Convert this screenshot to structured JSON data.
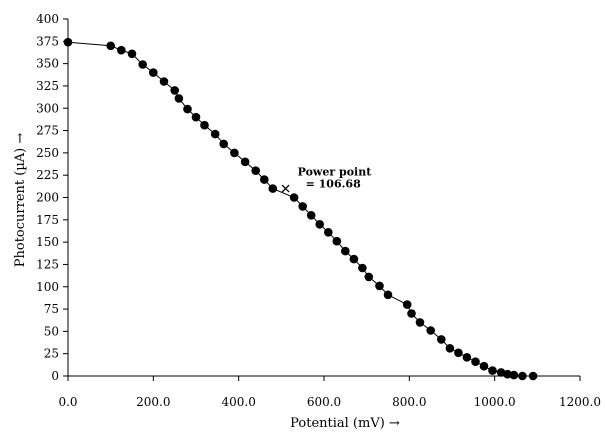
{
  "chart_data": {
    "type": "scatter",
    "title": "",
    "xlabel": "Potential (mV) →",
    "ylabel": "Photocurrent (µA) →",
    "xlim": [
      0,
      1200
    ],
    "ylim": [
      0,
      400
    ],
    "x_ticks": [
      "0.0",
      "200.0",
      "400.0",
      "600.0",
      "800.0",
      "1000.0",
      "1200.0"
    ],
    "y_ticks": [
      "0",
      "25",
      "50",
      "75",
      "100",
      "125",
      "150",
      "175",
      "200",
      "225",
      "250",
      "275",
      "300",
      "325",
      "350",
      "375",
      "400"
    ],
    "grid": false,
    "legend": "none",
    "marker_color": "#000000",
    "series": [
      {
        "x": [
          0,
          100,
          125,
          150,
          175,
          200,
          225,
          250,
          260,
          280,
          300,
          320,
          345,
          365,
          390,
          415,
          440,
          460,
          480,
          530,
          550,
          570,
          590,
          610,
          630,
          650,
          670,
          690,
          705,
          730,
          750,
          795,
          805,
          825,
          850,
          875,
          895,
          915,
          935,
          955,
          975,
          995,
          1015,
          1030,
          1045,
          1065,
          1090
        ],
        "y": [
          374,
          370,
          365,
          361,
          349,
          340,
          330,
          320,
          311,
          299,
          290,
          281,
          271,
          260,
          250,
          240,
          230,
          220,
          210,
          200,
          190,
          180,
          170,
          161,
          151,
          140,
          131,
          121,
          111,
          101,
          91,
          80,
          70,
          60,
          51,
          41,
          31,
          26,
          21,
          16,
          11,
          6,
          4,
          2,
          1,
          0,
          0
        ]
      }
    ],
    "annotation": {
      "label_line1": "Power point",
      "label_line2": "= 106.68",
      "x": 510,
      "y": 210
    }
  }
}
